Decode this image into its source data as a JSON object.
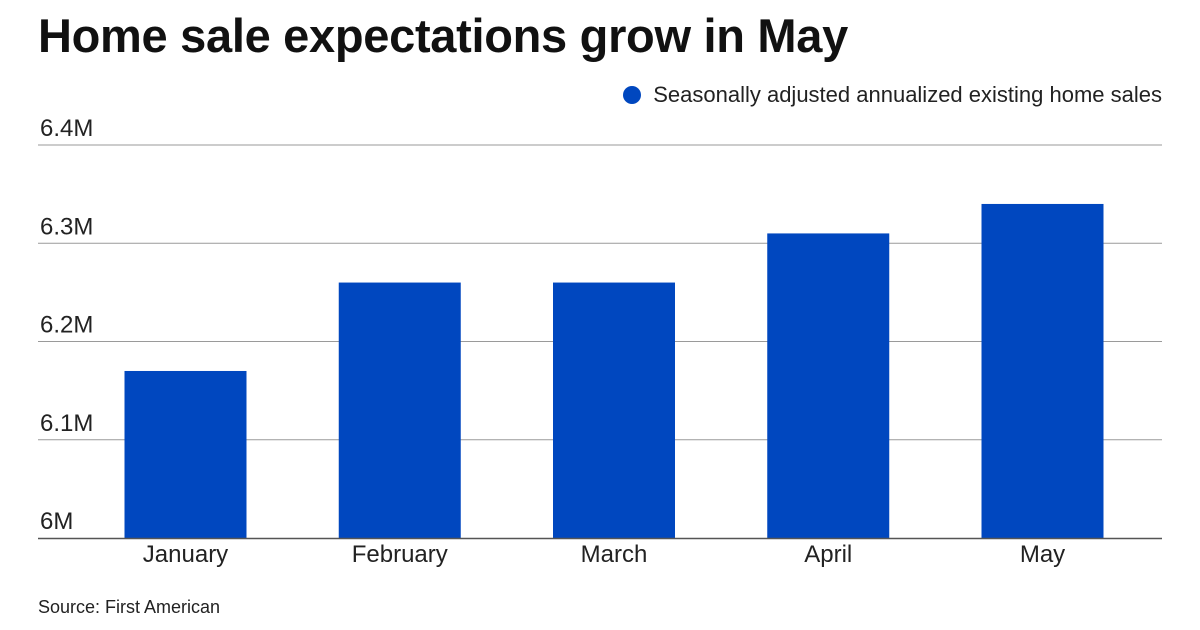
{
  "chart_data": {
    "type": "bar",
    "title": "Home sale expectations grow in May",
    "categories": [
      "January",
      "February",
      "March",
      "April",
      "May"
    ],
    "series": [
      {
        "name": "Seasonally adjusted annualized existing home sales",
        "values": [
          6.17,
          6.26,
          6.26,
          6.31,
          6.34
        ]
      }
    ],
    "ylim": [
      6.0,
      6.4
    ],
    "yticks": [
      6.0,
      6.1,
      6.2,
      6.3,
      6.4
    ],
    "ytick_labels": [
      "6M",
      "6.1M",
      "6.2M",
      "6.3M",
      "6.4M"
    ],
    "xlabel": "",
    "ylabel": "",
    "grid": true,
    "legend_position": "top-right",
    "source": "Source: First American"
  },
  "colors": {
    "bar": "#0047BF",
    "grid": "#9a9a9a",
    "axis": "#555555"
  }
}
